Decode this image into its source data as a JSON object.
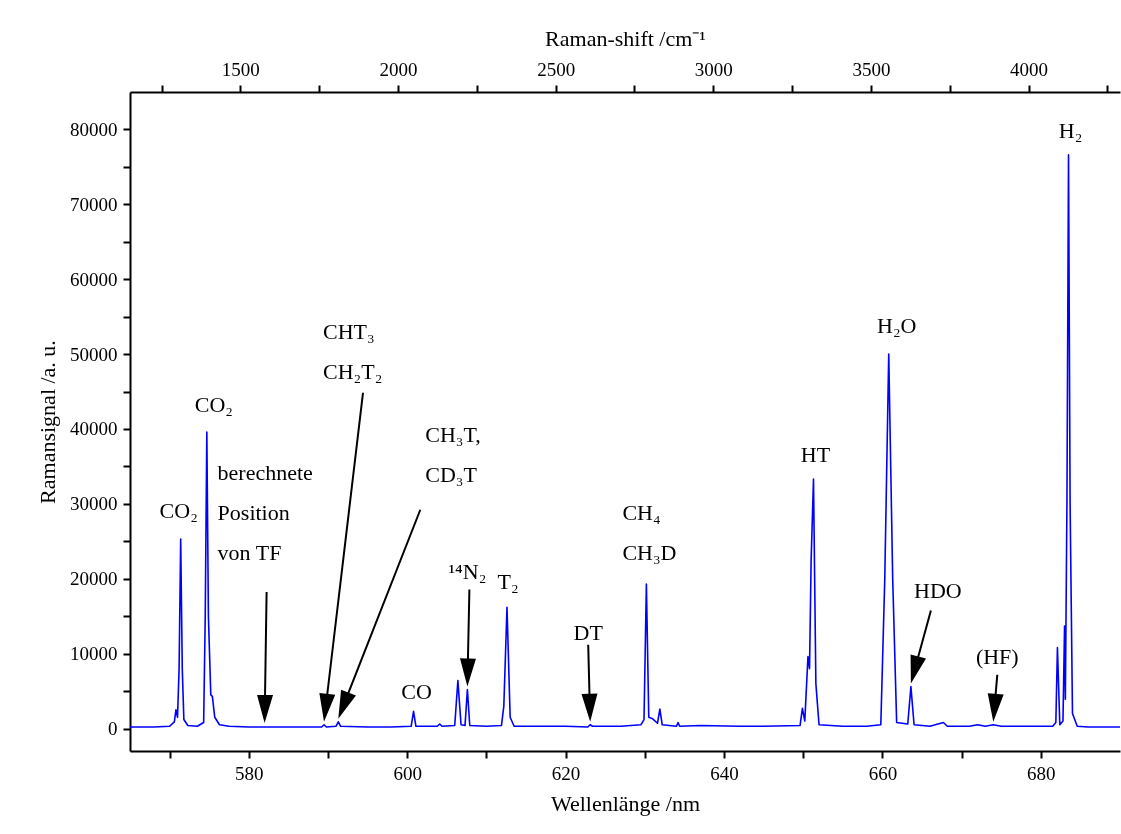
{
  "chart_data": {
    "type": "line",
    "xlabel": "Wellenlänge /nm",
    "ylabel": "Ramansignal /a. u.",
    "x2label": "Raman-shift /cm⁻¹",
    "xlim": [
      565,
      690
    ],
    "xticks": [
      {
        "value": 570,
        "label": null
      },
      580,
      {
        "value": 590,
        "label": null
      },
      600,
      {
        "value": 610,
        "label": null
      },
      620,
      {
        "value": 630,
        "label": null
      },
      640,
      {
        "value": 650,
        "label": null
      },
      660,
      {
        "value": 670,
        "label": null
      },
      680
    ],
    "x2lim": [
      1150,
      4290
    ],
    "x2ticks": [
      {
        "value": 1250,
        "label": null
      },
      1500,
      {
        "value": 1750,
        "label": null
      },
      2000,
      {
        "value": 2250,
        "label": null
      },
      2500,
      {
        "value": 2750,
        "label": null
      },
      3000,
      {
        "value": 3250,
        "label": null
      },
      3500,
      {
        "value": 3750,
        "label": null
      },
      4000,
      {
        "value": 4250,
        "label": null
      }
    ],
    "ylim": [
      -3000,
      85000
    ],
    "yticks": [
      0,
      {
        "value": 5000,
        "label": null
      },
      10000,
      {
        "value": 15000,
        "label": null
      },
      20000,
      {
        "value": 25000,
        "label": null
      },
      30000,
      {
        "value": 35000,
        "label": null
      },
      40000,
      {
        "value": 45000,
        "label": null
      },
      50000,
      {
        "value": 55000,
        "label": null
      },
      60000,
      {
        "value": 65000,
        "label": null
      },
      70000,
      {
        "value": 75000,
        "label": null
      },
      80000
    ],
    "grid": false,
    "marker": "none",
    "line_style": "solid",
    "series": [
      {
        "color": "#0000ff",
        "x": [
          565,
          568,
          570,
          570.6,
          570.8,
          571.0,
          571.2,
          571.4,
          571.6,
          571.8,
          572.3,
          573.5,
          574.3,
          574.5,
          574.7,
          574.9,
          575.2,
          575.4,
          575.7,
          576.3,
          577.5,
          580,
          582,
          585,
          588,
          589.2,
          589.5,
          589.8,
          591.0,
          591.3,
          591.6,
          595,
          598,
          600.5,
          600.8,
          601.1,
          603.8,
          604.1,
          604.4,
          606.0,
          606.4,
          606.8,
          607.3,
          607.6,
          607.9,
          610,
          611.9,
          612.2,
          612.6,
          613.0,
          613.5,
          617,
          620,
          622.8,
          623.1,
          623.4,
          627,
          629.5,
          629.9,
          630.2,
          630.5,
          631.0,
          631.6,
          631.9,
          632.2,
          634.0,
          634.2,
          634.4,
          637,
          642,
          645,
          649.6,
          649.9,
          650.2,
          650.6,
          650.8,
          651.0,
          651.3,
          651.6,
          652.0,
          655,
          658,
          659.8,
          660.3,
          660.8,
          661.3,
          661.8,
          663.2,
          663.6,
          664.0,
          666,
          667.7,
          668.2,
          671,
          672,
          673,
          674,
          675,
          678,
          681.5,
          681.9,
          682.1,
          682.4,
          682.8,
          683.0,
          683.1,
          683.3,
          683.5,
          683.7,
          684.0,
          684.6,
          686,
          690
        ],
        "values": [
          200,
          200,
          300,
          900,
          2500,
          1500,
          8000,
          25300,
          8000,
          1200,
          400,
          300,
          800,
          15000,
          39600,
          15000,
          4500,
          4300,
          1500,
          500,
          300,
          200,
          200,
          200,
          200,
          200,
          500,
          200,
          300,
          900,
          300,
          200,
          200,
          300,
          2300,
          300,
          300,
          600,
          300,
          400,
          6400,
          500,
          400,
          5200,
          400,
          300,
          400,
          3000,
          16200,
          1500,
          300,
          300,
          300,
          200,
          500,
          300,
          300,
          500,
          1200,
          19300,
          1500,
          1300,
          700,
          2600,
          500,
          300,
          800,
          300,
          400,
          300,
          300,
          400,
          2700,
          1000,
          9600,
          8000,
          22400,
          33300,
          6000,
          500,
          300,
          300,
          500,
          20000,
          50000,
          20000,
          800,
          600,
          5600,
          500,
          300,
          800,
          300,
          300,
          500,
          300,
          500,
          300,
          300,
          300,
          800,
          10800,
          500,
          1000,
          13700,
          3900,
          30000,
          76600,
          30000,
          2000,
          300,
          200,
          200
        ]
      }
    ],
    "annotations": [
      {
        "text": "CO₂",
        "x": 571.4,
        "y": 25300
      },
      {
        "text": "CO₂",
        "x": 574.7,
        "y": 39600
      },
      "berechnete\nPosition\nvon TF",
      "CHT₃\nCH₂T₂",
      "CH₃T,\nCD₃T",
      {
        "text": "CO",
        "x": 600.8,
        "y": 2300
      },
      "¹⁴N₂",
      {
        "text": "T₂",
        "x": 612.6,
        "y": 16200
      },
      "DT",
      {
        "text": "CH₄\nCH₃D",
        "x": 630.2,
        "y": 19300
      },
      {
        "text": "HT",
        "x": 651.3,
        "y": 33300
      },
      {
        "text": "H₂O",
        "x": 660.8,
        "y": 50000
      },
      "HDO",
      "(HF)",
      {
        "text": "H₂",
        "x": 683.5,
        "y": 76600
      }
    ]
  }
}
